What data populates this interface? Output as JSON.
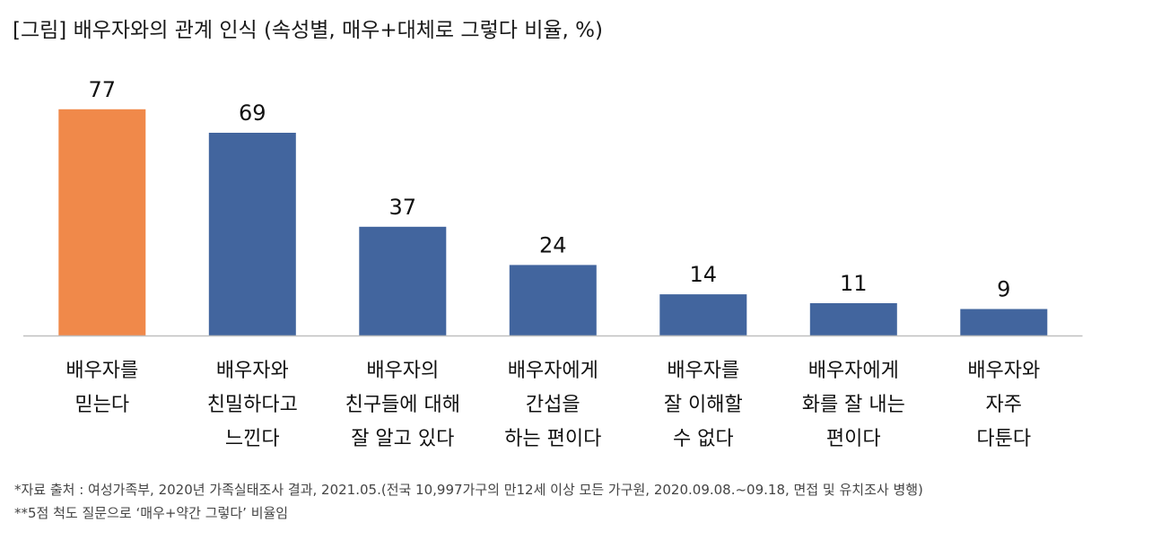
{
  "title": "[그림] 배우자와의 관계 인식 (속성별, 매우+대체로 그렇다 비율, %)",
  "chart_data": {
    "type": "bar",
    "categories": [
      [
        "배우자를",
        "믿는다"
      ],
      [
        "배우자와",
        "친밀하다고",
        "느낀다"
      ],
      [
        "배우자의",
        "친구들에 대해",
        "잘 알고 있다"
      ],
      [
        "배우자에게",
        "간섭을",
        "하는 편이다"
      ],
      [
        "배우자를",
        "잘 이해할",
        "수 없다"
      ],
      [
        "배우자에게",
        "화를 잘 내는",
        "편이다"
      ],
      [
        "배우자와",
        "자주",
        "다툰다"
      ]
    ],
    "values": [
      77,
      69,
      37,
      24,
      14,
      11,
      9
    ],
    "highlight_index": 0,
    "colors": {
      "highlight": "#F0894A",
      "default": "#42659E",
      "axis": "#BFBFBF"
    },
    "ylim": [
      0,
      80
    ],
    "grid": false,
    "xlabel": "",
    "ylabel": ""
  },
  "footnotes": [
    "*자료 출처 : 여성가족부, 2020년 가족실태조사 결과, 2021.05.(전국 10,997가구의 만12세 이상 모든 가구원, 2020.09.08.~09.18, 면접 및 유치조사 병행)",
    "**5점 척도 질문으로 ‘매우+약간 그렇다’ 비율임"
  ]
}
